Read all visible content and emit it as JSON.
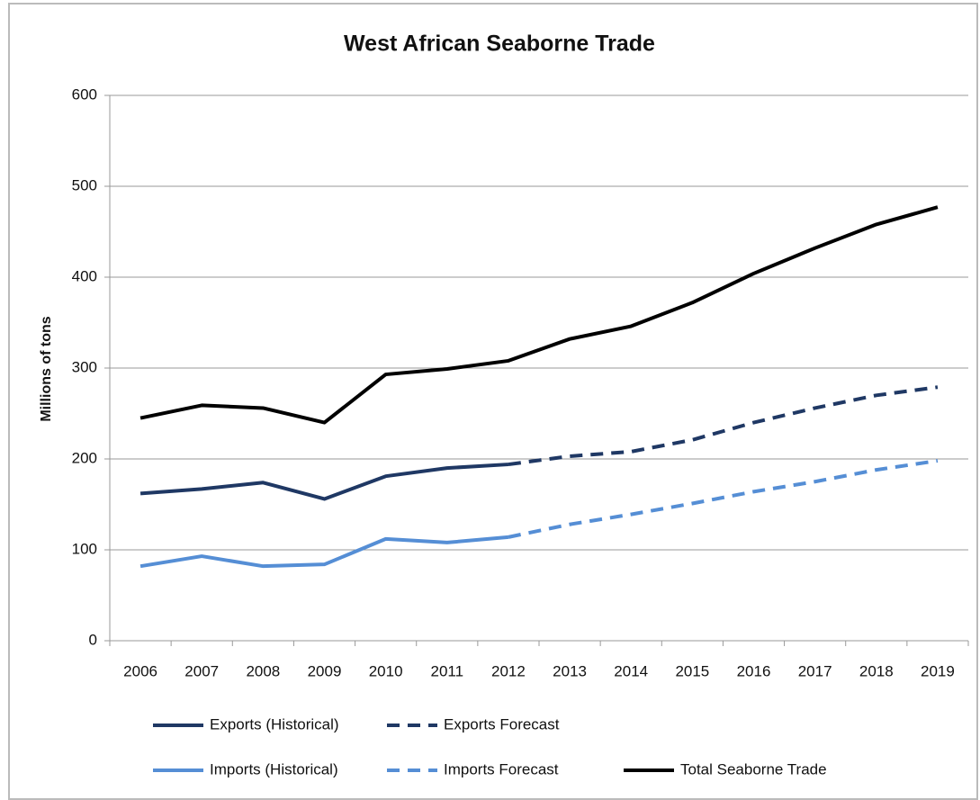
{
  "chart_data": {
    "type": "line",
    "title": "West African Seaborne Trade",
    "y_label": "Millions of tons",
    "categories": [
      "2006",
      "2007",
      "2008",
      "2009",
      "2010",
      "2011",
      "2012",
      "2013",
      "2014",
      "2015",
      "2016",
      "2017",
      "2018",
      "2019"
    ],
    "series": [
      {
        "name": "Exports (Historical)",
        "color": "#1f3864",
        "dashed": false,
        "values": [
          162,
          167,
          174,
          156,
          181,
          190,
          194,
          null,
          null,
          null,
          null,
          null,
          null,
          null
        ]
      },
      {
        "name": "Exports Forecast",
        "color": "#1f3864",
        "dashed": true,
        "values": [
          null,
          null,
          null,
          null,
          null,
          null,
          194,
          203,
          208,
          221,
          240,
          256,
          270,
          279
        ]
      },
      {
        "name": "Imports (Historical)",
        "color": "#558ed5",
        "dashed": false,
        "values": [
          82,
          93,
          82,
          84,
          112,
          108,
          114,
          null,
          null,
          null,
          null,
          null,
          null,
          null
        ]
      },
      {
        "name": "Imports Forecast",
        "color": "#558ed5",
        "dashed": true,
        "values": [
          null,
          null,
          null,
          null,
          null,
          null,
          114,
          128,
          139,
          151,
          164,
          175,
          188,
          198
        ]
      },
      {
        "name": "Total Seaborne Trade",
        "color": "#000000",
        "dashed": false,
        "values": [
          245,
          259,
          256,
          240,
          293,
          299,
          308,
          332,
          346,
          372,
          404,
          432,
          458,
          477
        ]
      }
    ],
    "ylim": [
      0,
      600
    ],
    "yticks": [
      0,
      100,
      200,
      300,
      400,
      500,
      600
    ],
    "grid": true,
    "legend": "bottom"
  }
}
